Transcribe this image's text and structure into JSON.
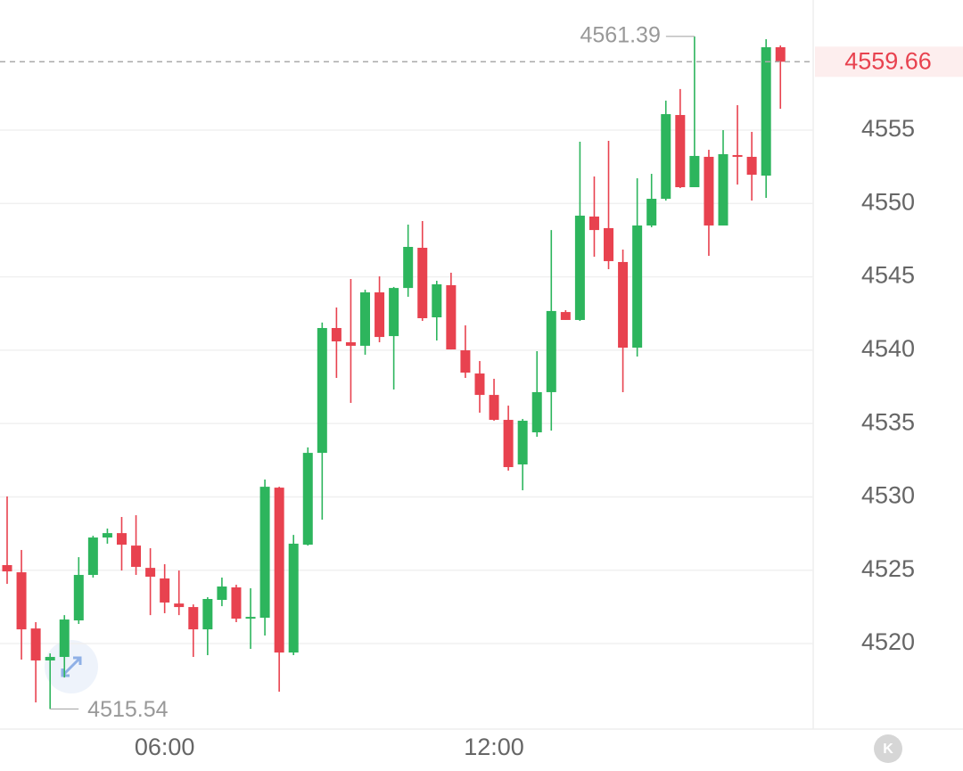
{
  "chart_data": {
    "type": "candlestick",
    "categories": [
      null,
      null,
      null,
      null,
      null,
      null,
      null,
      null,
      null,
      null,
      null,
      "06:00",
      null,
      null,
      null,
      null,
      null,
      null,
      null,
      null,
      null,
      null,
      null,
      null,
      null,
      null,
      null,
      null,
      null,
      null,
      null,
      null,
      null,
      null,
      "12:00",
      null,
      null,
      null,
      null,
      null,
      null,
      null,
      null,
      null,
      null,
      null,
      null,
      null,
      null,
      null,
      null,
      null,
      null,
      null,
      null
    ],
    "open": [
      4525.35,
      4524.86,
      4521.03,
      4518.85,
      4519.09,
      4521.58,
      4524.68,
      4527.23,
      4527.53,
      4526.68,
      4525.16,
      4524.44,
      4522.73,
      4522.49,
      4520.97,
      4522.98,
      4523.83,
      4521.7,
      4521.76,
      4530.63,
      4519.39,
      4526.74,
      4533.0,
      4541.51,
      4540.54,
      4540.3,
      4543.94,
      4540.96,
      4544.24,
      4546.98,
      4542.24,
      4544.43,
      4539.99,
      4538.41,
      4536.95,
      4535.25,
      4532.21,
      4534.4,
      4537.14,
      4542.6,
      4542.06,
      4549.11,
      4548.32,
      4546.01,
      4540.17,
      4548.5,
      4550.32,
      4556.03,
      4551.11,
      4553.18,
      4548.5,
      4553.3,
      4553.18,
      4551.9,
      4560.65
    ],
    "high": [
      4530.03,
      4526.38,
      4521.46,
      4519.33,
      4521.94,
      4525.89,
      4527.35,
      4527.84,
      4528.63,
      4528.75,
      4526.5,
      4525.41,
      4524.98,
      4522.67,
      4523.16,
      4524.5,
      4524.01,
      4523.77,
      4531.18,
      4530.69,
      4527.41,
      4533.37,
      4541.88,
      4542.91,
      4544.85,
      4544.12,
      4545.03,
      4544.31,
      4548.56,
      4548.8,
      4544.73,
      4545.28,
      4541.69,
      4539.26,
      4538.05,
      4536.22,
      4535.31,
      4539.93,
      4548.19,
      4542.73,
      4554.21,
      4551.84,
      4554.27,
      4546.86,
      4551.72,
      4552.02,
      4557.01,
      4557.8,
      4561.39,
      4553.66,
      4555.0,
      4556.7,
      4554.88,
      4561.2,
      4560.77
    ],
    "low": [
      4524.07,
      4518.91,
      4515.99,
      4515.54,
      4517.69,
      4521.34,
      4524.5,
      4526.81,
      4524.98,
      4524.68,
      4521.94,
      4522.07,
      4521.94,
      4519.09,
      4519.21,
      4522.55,
      4521.46,
      4519.64,
      4520.55,
      4516.72,
      4519.21,
      4526.68,
      4528.45,
      4538.11,
      4536.41,
      4539.69,
      4540.54,
      4537.32,
      4543.64,
      4542.0,
      4540.66,
      4540.05,
      4538.11,
      4535.74,
      4535.19,
      4531.79,
      4530.45,
      4534.1,
      4534.52,
      4542.06,
      4542.0,
      4546.37,
      4545.52,
      4537.14,
      4539.57,
      4548.38,
      4550.2,
      4551.05,
      4551.11,
      4546.43,
      4548.5,
      4551.29,
      4550.2,
      4550.38,
      4556.46
    ],
    "close": [
      4524.92,
      4520.97,
      4518.85,
      4519.09,
      4521.64,
      4524.68,
      4527.23,
      4527.53,
      4526.74,
      4525.23,
      4524.56,
      4522.8,
      4522.49,
      4520.97,
      4523.04,
      4523.89,
      4521.7,
      4521.82,
      4530.69,
      4519.39,
      4526.81,
      4533.0,
      4541.51,
      4540.6,
      4540.3,
      4543.94,
      4540.9,
      4544.24,
      4547.04,
      4542.18,
      4544.49,
      4540.05,
      4538.47,
      4536.95,
      4535.25,
      4532.03,
      4535.19,
      4537.14,
      4542.67,
      4542.06,
      4549.17,
      4548.19,
      4546.07,
      4540.17,
      4548.5,
      4550.32,
      4556.09,
      4551.11,
      4553.24,
      4548.5,
      4553.36,
      4553.18,
      4551.96,
      4560.65,
      4559.66
    ],
    "up_color": "#2db55d",
    "down_color": "#e8424f",
    "ylim": [
      4514.17,
      4563.87
    ],
    "yticks": [
      4520,
      4525,
      4530,
      4535,
      4540,
      4545,
      4550,
      4555
    ],
    "grid": true,
    "last_price_line": true,
    "kline_button": "K"
  }
}
